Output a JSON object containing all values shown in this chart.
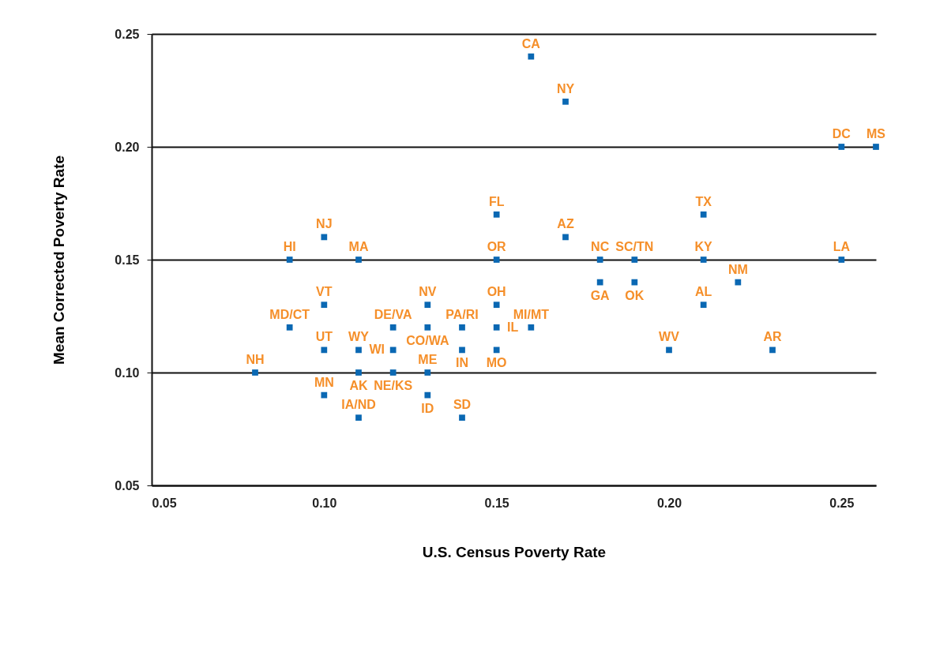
{
  "chart_data": {
    "type": "scatter",
    "xlabel": "U.S. Census Poverty Rate",
    "ylabel": "Mean Corrected Poverty Rate",
    "xlim": [
      0.05,
      0.26
    ],
    "ylim": [
      0.05,
      0.25
    ],
    "xticks": [
      {
        "value": 0.05,
        "label": "0.05"
      },
      {
        "value": 0.1,
        "label": "0.10"
      },
      {
        "value": 0.15,
        "label": "0.15"
      },
      {
        "value": 0.2,
        "label": "0.20"
      },
      {
        "value": 0.25,
        "label": "0.25"
      }
    ],
    "yticks": [
      {
        "value": 0.05,
        "label": "0.05"
      },
      {
        "value": 0.1,
        "label": "0.10"
      },
      {
        "value": 0.15,
        "label": "0.15"
      },
      {
        "value": 0.2,
        "label": "0.20"
      },
      {
        "value": 0.25,
        "label": "0.25"
      }
    ],
    "grid": "y",
    "legend": false,
    "marker": "square",
    "series": [
      {
        "name": "CA",
        "color": "#0a68b3",
        "x": [
          0.16
        ],
        "values": [
          0.24
        ]
      },
      {
        "name": "NY",
        "color": "#0a68b3",
        "x": [
          0.17
        ],
        "values": [
          0.22
        ]
      },
      {
        "name": "DC",
        "color": "#0a68b3",
        "x": [
          0.25
        ],
        "values": [
          0.2
        ]
      },
      {
        "name": "MS",
        "color": "#0a68b3",
        "x": [
          0.26
        ],
        "values": [
          0.2
        ]
      },
      {
        "name": "FL",
        "color": "#0a68b3",
        "x": [
          0.15
        ],
        "values": [
          0.17
        ]
      },
      {
        "name": "TX",
        "color": "#0a68b3",
        "x": [
          0.21
        ],
        "values": [
          0.17
        ]
      },
      {
        "name": "NJ",
        "color": "#0a68b3",
        "x": [
          0.1
        ],
        "values": [
          0.16
        ]
      },
      {
        "name": "AZ",
        "color": "#0a68b3",
        "x": [
          0.17
        ],
        "values": [
          0.16
        ]
      },
      {
        "name": "HI",
        "color": "#0a68b3",
        "x": [
          0.09
        ],
        "values": [
          0.15
        ]
      },
      {
        "name": "MA",
        "color": "#0a68b3",
        "x": [
          0.11
        ],
        "values": [
          0.15
        ]
      },
      {
        "name": "OR",
        "color": "#0a68b3",
        "x": [
          0.15
        ],
        "values": [
          0.15
        ]
      },
      {
        "name": "NC",
        "color": "#0a68b3",
        "x": [
          0.18
        ],
        "values": [
          0.15
        ]
      },
      {
        "name": "SC/TN",
        "color": "#0a68b3",
        "x": [
          0.19
        ],
        "values": [
          0.15
        ]
      },
      {
        "name": "KY",
        "color": "#0a68b3",
        "x": [
          0.21
        ],
        "values": [
          0.15
        ]
      },
      {
        "name": "LA",
        "color": "#0a68b3",
        "x": [
          0.25
        ],
        "values": [
          0.15
        ]
      },
      {
        "name": "GA",
        "color": "#0a68b3",
        "x": [
          0.18
        ],
        "values": [
          0.14
        ]
      },
      {
        "name": "OK",
        "color": "#0a68b3",
        "x": [
          0.19
        ],
        "values": [
          0.14
        ]
      },
      {
        "name": "NM",
        "color": "#0a68b3",
        "x": [
          0.22
        ],
        "values": [
          0.14
        ]
      },
      {
        "name": "VT",
        "color": "#0a68b3",
        "x": [
          0.1
        ],
        "values": [
          0.13
        ]
      },
      {
        "name": "NV",
        "color": "#0a68b3",
        "x": [
          0.13
        ],
        "values": [
          0.13
        ]
      },
      {
        "name": "OH",
        "color": "#0a68b3",
        "x": [
          0.15
        ],
        "values": [
          0.13
        ]
      },
      {
        "name": "AL",
        "color": "#0a68b3",
        "x": [
          0.21
        ],
        "values": [
          0.13
        ]
      },
      {
        "name": "MD/CT",
        "color": "#0a68b3",
        "x": [
          0.09
        ],
        "values": [
          0.12
        ]
      },
      {
        "name": "DE/VA",
        "color": "#0a68b3",
        "x": [
          0.12
        ],
        "values": [
          0.12
        ]
      },
      {
        "name": "CO/WA",
        "color": "#0a68b3",
        "x": [
          0.13
        ],
        "values": [
          0.12
        ]
      },
      {
        "name": "PA/RI",
        "color": "#0a68b3",
        "x": [
          0.14
        ],
        "values": [
          0.12
        ]
      },
      {
        "name": "IL",
        "color": "#0a68b3",
        "x": [
          0.15
        ],
        "values": [
          0.12
        ]
      },
      {
        "name": "MI/MT",
        "color": "#0a68b3",
        "x": [
          0.16
        ],
        "values": [
          0.12
        ]
      },
      {
        "name": "UT",
        "color": "#0a68b3",
        "x": [
          0.1
        ],
        "values": [
          0.11
        ]
      },
      {
        "name": "WY",
        "color": "#0a68b3",
        "x": [
          0.11
        ],
        "values": [
          0.11
        ]
      },
      {
        "name": "WI",
        "color": "#0a68b3",
        "x": [
          0.12
        ],
        "values": [
          0.11
        ]
      },
      {
        "name": "IN",
        "color": "#0a68b3",
        "x": [
          0.14
        ],
        "values": [
          0.11
        ]
      },
      {
        "name": "MO",
        "color": "#0a68b3",
        "x": [
          0.15
        ],
        "values": [
          0.11
        ]
      },
      {
        "name": "WV",
        "color": "#0a68b3",
        "x": [
          0.2
        ],
        "values": [
          0.11
        ]
      },
      {
        "name": "AR",
        "color": "#0a68b3",
        "x": [
          0.23
        ],
        "values": [
          0.11
        ]
      },
      {
        "name": "NH",
        "color": "#0a68b3",
        "x": [
          0.08
        ],
        "values": [
          0.1
        ]
      },
      {
        "name": "AK",
        "color": "#0a68b3",
        "x": [
          0.11
        ],
        "values": [
          0.1
        ]
      },
      {
        "name": "NE/KS",
        "color": "#0a68b3",
        "x": [
          0.12
        ],
        "values": [
          0.1
        ]
      },
      {
        "name": "ME",
        "color": "#0a68b3",
        "x": [
          0.13
        ],
        "values": [
          0.1
        ]
      },
      {
        "name": "MN",
        "color": "#0a68b3",
        "x": [
          0.1
        ],
        "values": [
          0.09
        ]
      },
      {
        "name": "ID",
        "color": "#0a68b3",
        "x": [
          0.13
        ],
        "values": [
          0.09
        ]
      },
      {
        "name": "IA/ND",
        "color": "#0a68b3",
        "x": [
          0.11
        ],
        "values": [
          0.08
        ]
      },
      {
        "name": "SD",
        "color": "#0a68b3",
        "x": [
          0.14
        ],
        "values": [
          0.08
        ]
      }
    ]
  }
}
